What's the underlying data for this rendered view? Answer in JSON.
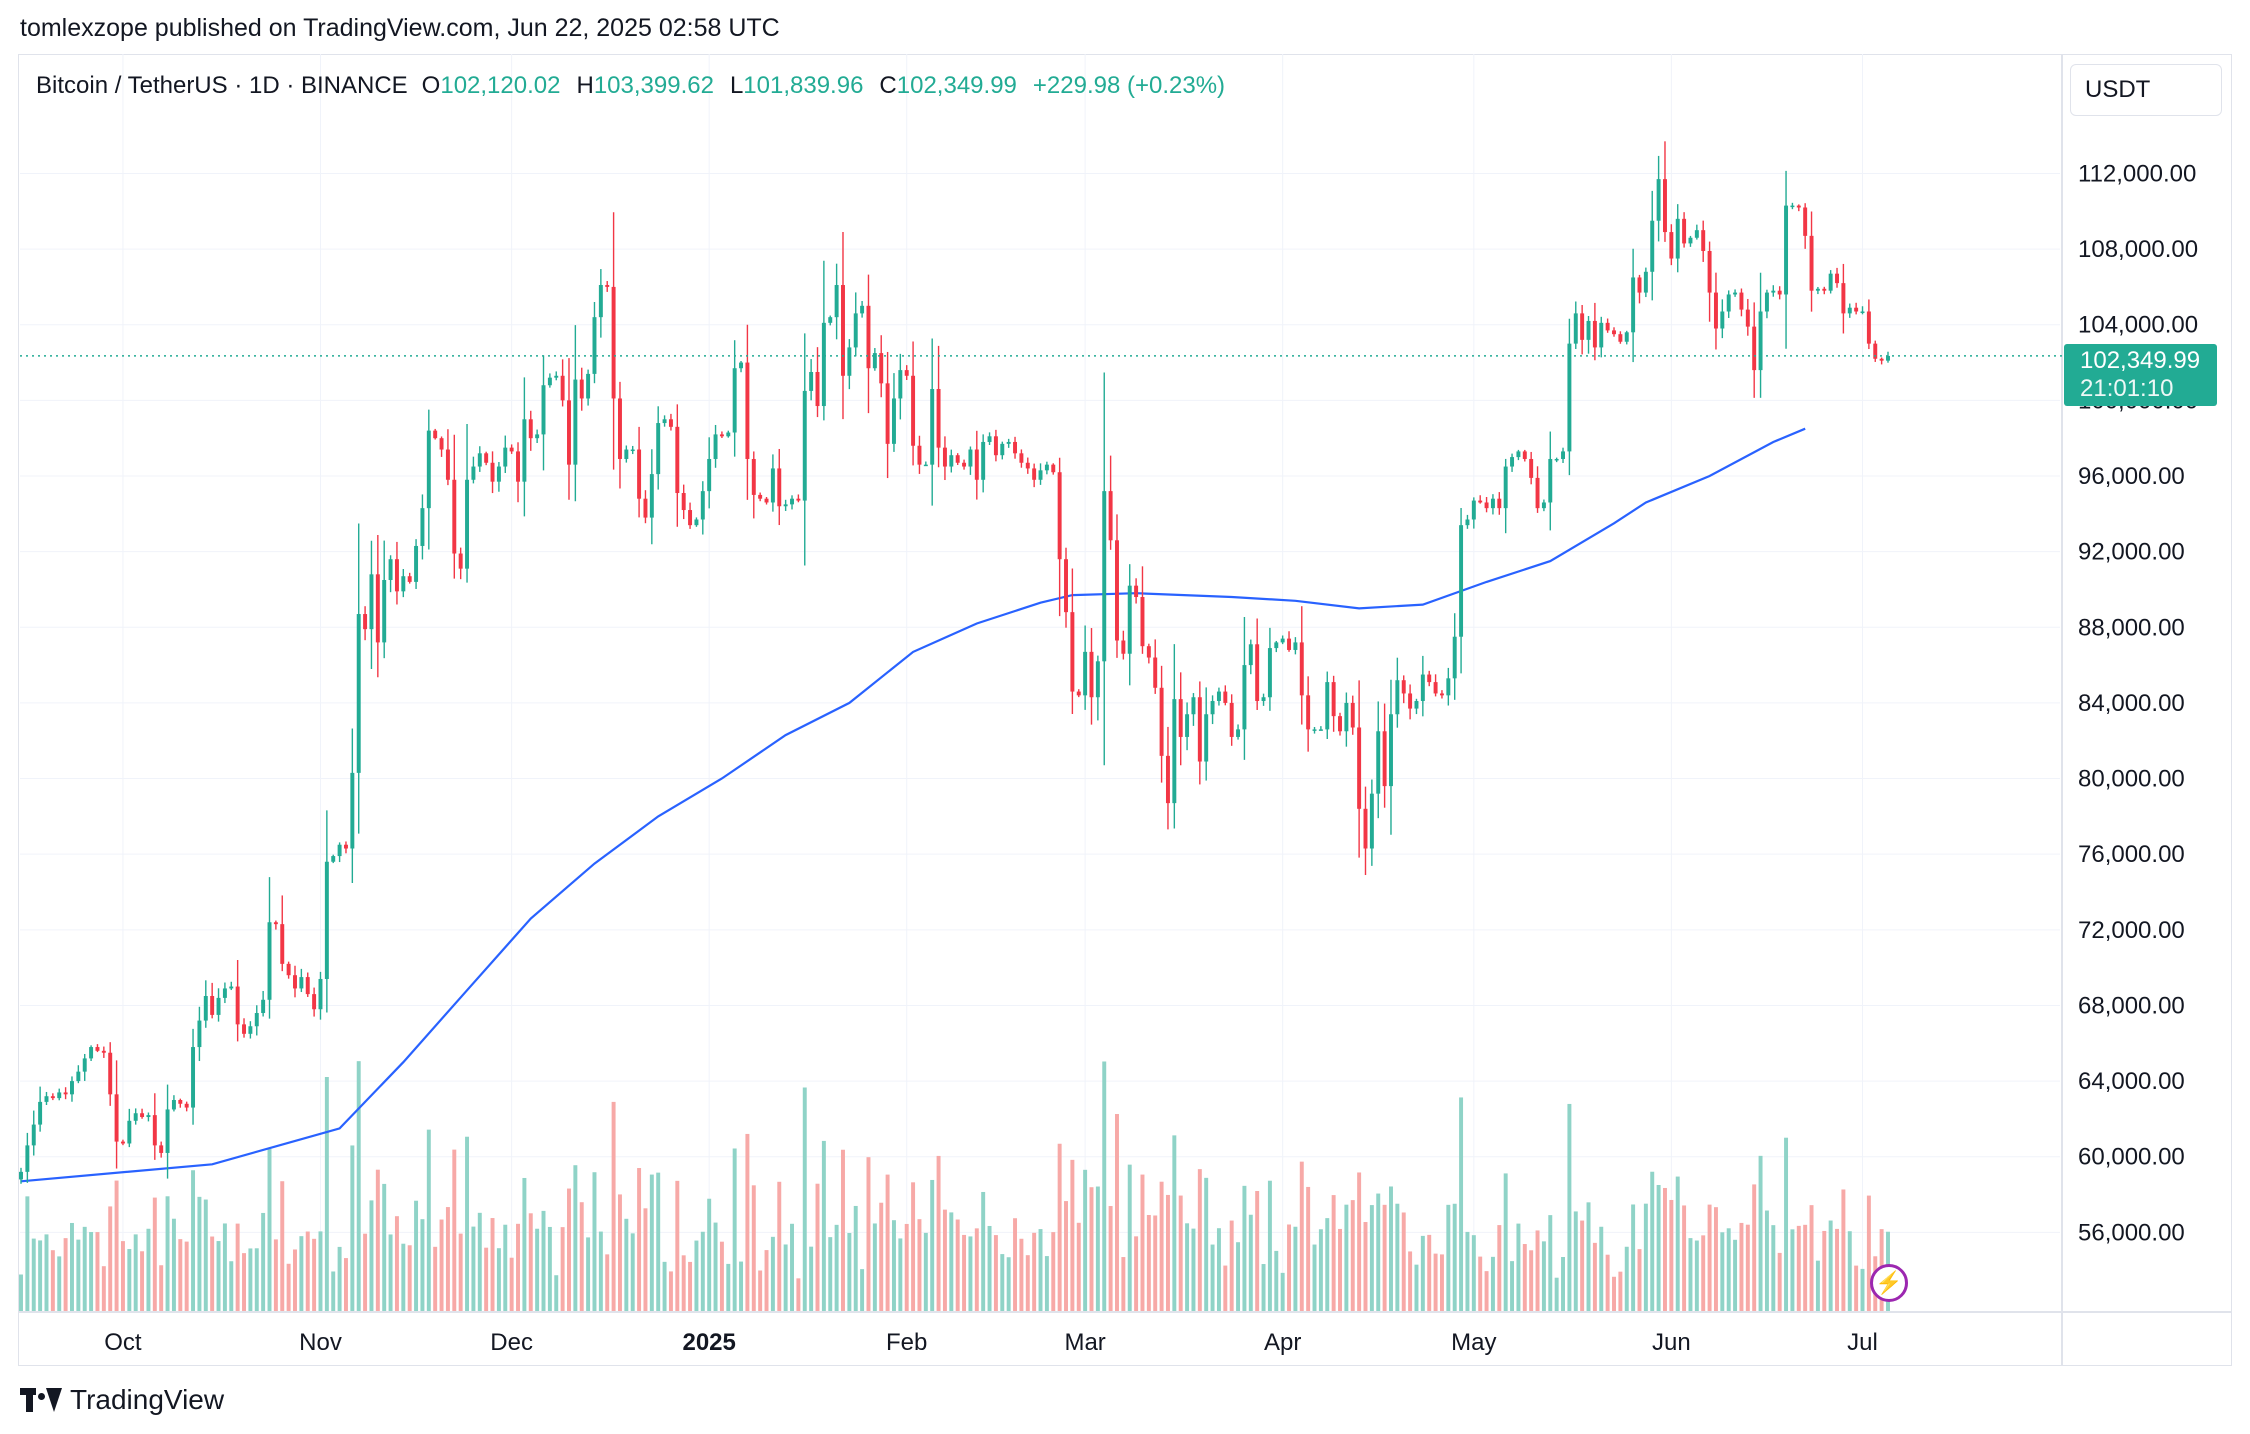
{
  "header": {
    "publish_line": "tomlexzope published on TradingView.com, Jun 22, 2025 02:58 UTC"
  },
  "legend": {
    "symbol": "Bitcoin / TetherUS · 1D · BINANCE",
    "open_label": "O",
    "open_value": "102,120.02",
    "high_label": "H",
    "high_value": "103,399.62",
    "low_label": "L",
    "low_value": "101,839.96",
    "close_label": "C",
    "close_value": "102,349.99",
    "change": "+229.98 (+0.23%)"
  },
  "currency": "USDT",
  "price_tag": {
    "price": "102,349.99",
    "countdown": "21:01:10"
  },
  "footer": {
    "brand": "TradingView"
  },
  "colors": {
    "up": "#22ab94",
    "down": "#f23645",
    "ma": "#2962ff",
    "grid": "#f0f3fa"
  },
  "chart_data": {
    "type": "candlestick",
    "y_axis": {
      "ticks": [
        56000,
        60000,
        64000,
        68000,
        72000,
        76000,
        80000,
        84000,
        88000,
        92000,
        96000,
        100000,
        104000,
        108000,
        112000
      ],
      "tick_labels": [
        "56,000.00",
        "60,000.00",
        "64,000.00",
        "68,000.00",
        "72,000.00",
        "76,000.00",
        "80,000.00",
        "84,000.00",
        "88,000.00",
        "92,000.00",
        "96,000.00",
        "100,000.00",
        "104,000.00",
        "108,000.00",
        "112,000.00"
      ],
      "range": [
        52000,
        118000
      ]
    },
    "x_axis": {
      "labels": [
        "Oct",
        "Nov",
        "Dec",
        "2025",
        "Feb",
        "Mar",
        "Apr",
        "May",
        "Jun",
        "Jul"
      ],
      "label_day_index": [
        16,
        47,
        77,
        108,
        139,
        167,
        198,
        228,
        259,
        289
      ]
    },
    "start_date": "2024-09-15",
    "last_price": 102349.99,
    "closes": [
      59200,
      60600,
      61700,
      62900,
      63200,
      63100,
      63400,
      63300,
      64000,
      64500,
      65200,
      65800,
      65600,
      65500,
      63300,
      60800,
      60700,
      61900,
      62300,
      62100,
      62200,
      60600,
      60200,
      62500,
      63000,
      62800,
      62600,
      65800,
      67200,
      68500,
      67500,
      68400,
      68900,
      69000,
      67000,
      66500,
      66900,
      67600,
      68300,
      72400,
      72300,
      70200,
      69600,
      68900,
      69500,
      68600,
      67800,
      69400,
      75600,
      75900,
      76500,
      76300,
      80300,
      88700,
      87900,
      90800,
      87200,
      90500,
      91600,
      89900,
      90700,
      90400,
      92300,
      94300,
      98400,
      98000,
      97400,
      95800,
      91900,
      91100,
      95800,
      96500,
      97200,
      96700,
      95700,
      96500,
      97500,
      97300,
      95700,
      99000,
      98000,
      98200,
      100800,
      101200,
      101300,
      100000,
      96600,
      101100,
      100100,
      101400,
      104400,
      106100,
      106000,
      100100,
      96900,
      97400,
      97400,
      94800,
      93800,
      96100,
      98800,
      99000,
      98600,
      95100,
      94200,
      93400,
      93700,
      95200,
      96900,
      98200,
      98100,
      98300,
      101700,
      102000,
      96900,
      95000,
      94800,
      94600,
      96400,
      94400,
      94500,
      94800,
      94700,
      100500,
      101500,
      99700,
      104100,
      104400,
      106100,
      101300,
      102800,
      104600,
      105000,
      101700,
      102500,
      100900,
      97700,
      100100,
      101600,
      101300,
      97600,
      96600,
      96600,
      100600,
      97500,
      96500,
      97100,
      96700,
      96500,
      97400,
      95800,
      97800,
      98100,
      97100,
      97700,
      97800,
      97200,
      96700,
      96400,
      95800,
      96300,
      96600,
      96200,
      91600,
      88800,
      84600,
      84400,
      86700,
      84300,
      86200,
      95200,
      92600,
      87300,
      86600,
      90200,
      89600,
      87000,
      86400,
      84800,
      81200,
      78700,
      84200,
      82200,
      83400,
      84300,
      80900,
      83400,
      84100,
      84600,
      84000,
      82200,
      82600,
      86000,
      87100,
      84100,
      84300,
      86900,
      87200,
      87400,
      86800,
      87200,
      84400,
      82600,
      82600,
      82600,
      85100,
      83300,
      82500,
      84000,
      82700,
      78400,
      76300,
      79200,
      82500,
      79600,
      83400,
      85200,
      84500,
      83700,
      84100,
      85500,
      85100,
      84500,
      84400,
      85300,
      87500,
      93400,
      93700,
      94700,
      94600,
      94300,
      94800,
      94300,
      96500,
      97000,
      97300,
      96900,
      95900,
      94300,
      94600,
      96900,
      96900,
      97300,
      103000,
      104600,
      103200,
      104200,
      102800,
      104100,
      103700,
      103500,
      103100,
      103600,
      106500,
      105700,
      106800,
      109500,
      111700,
      108900,
      107500,
      109600,
      108300,
      108600,
      109000,
      107900,
      105700,
      103800,
      104700,
      105600,
      105700,
      104800,
      103900,
      101600,
      104700,
      105700,
      105800,
      105600,
      110300,
      110300,
      110200,
      108700,
      105800,
      105900,
      105800,
      106700,
      106200,
      104600,
      104900,
      104700,
      104700,
      103000,
      102200,
      102100,
      102350
    ],
    "ma_points": [
      {
        "day": 0,
        "value": 58700
      },
      {
        "day": 30,
        "value": 59600
      },
      {
        "day": 50,
        "value": 61500
      },
      {
        "day": 60,
        "value": 65000
      },
      {
        "day": 70,
        "value": 68800
      },
      {
        "day": 80,
        "value": 72600
      },
      {
        "day": 90,
        "value": 75500
      },
      {
        "day": 100,
        "value": 78000
      },
      {
        "day": 110,
        "value": 80000
      },
      {
        "day": 120,
        "value": 82300
      },
      {
        "day": 130,
        "value": 84000
      },
      {
        "day": 140,
        "value": 86700
      },
      {
        "day": 150,
        "value": 88200
      },
      {
        "day": 160,
        "value": 89300
      },
      {
        "day": 165,
        "value": 89700
      },
      {
        "day": 175,
        "value": 89800
      },
      {
        "day": 190,
        "value": 89600
      },
      {
        "day": 200,
        "value": 89400
      },
      {
        "day": 210,
        "value": 89000
      },
      {
        "day": 220,
        "value": 89200
      },
      {
        "day": 230,
        "value": 90400
      },
      {
        "day": 240,
        "value": 91500
      },
      {
        "day": 250,
        "value": 93500
      },
      {
        "day": 255,
        "value": 94600
      },
      {
        "day": 265,
        "value": 96000
      },
      {
        "day": 275,
        "value": 97800
      },
      {
        "day": 280,
        "value": 98500
      }
    ]
  }
}
